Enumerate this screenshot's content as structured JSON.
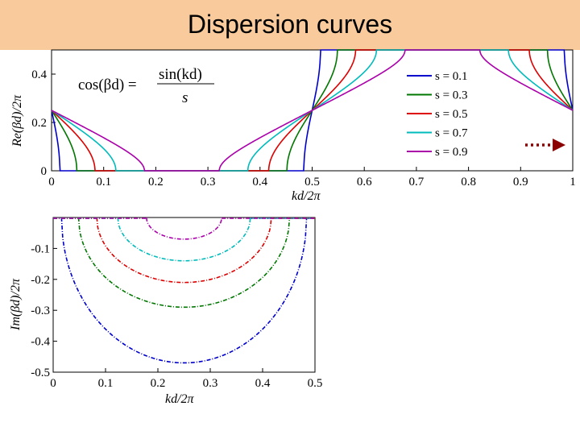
{
  "slide": {
    "title": "Dispersion curves"
  },
  "equation": {
    "lhs": "cos(βd) =",
    "num": "sin(kd)",
    "den": "s"
  },
  "colors": {
    "s0.1": "#0000cc",
    "s0.3": "#007700",
    "s0.5": "#dd0000",
    "s0.7": "#00bbbb",
    "s0.9": "#aa00aa",
    "arrow": "#8b0000",
    "title_bg": "#f9cb9c"
  },
  "arrow_icon": "dotted-right-arrow-icon",
  "chart_data": [
    {
      "type": "line",
      "title": "",
      "xlabel": "kd/2π",
      "ylabel": "Re(βd)/2π",
      "xlim": [
        0,
        1
      ],
      "ylim": [
        0,
        0.5
      ],
      "xticks": [
        "0",
        "0.1",
        "0.2",
        "0.3",
        "0.4",
        "0.5",
        "0.6",
        "0.7",
        "0.8",
        "0.9",
        "1"
      ],
      "yticks": [
        "0",
        "0.2",
        "0.4"
      ],
      "legend_position": "top-right",
      "series": [
        {
          "name": "s = 0.1",
          "s": 0.1
        },
        {
          "name": "s = 0.3",
          "s": 0.3
        },
        {
          "name": "s = 0.5",
          "s": 0.5
        },
        {
          "name": "s = 0.7",
          "s": 0.7
        },
        {
          "name": "s = 0.9",
          "s": 0.9
        }
      ]
    },
    {
      "type": "line",
      "title": "",
      "xlabel": "kd/2π",
      "ylabel": "Im(βd)/2π",
      "xlim": [
        0,
        0.5
      ],
      "ylim": [
        -0.5,
        0
      ],
      "xticks": [
        "0",
        "0.1",
        "0.2",
        "0.3",
        "0.4",
        "0.5"
      ],
      "yticks": [
        "-0.1",
        "-0.2",
        "-0.3",
        "-0.4",
        "-0.5"
      ],
      "series": [
        {
          "s": 0.1,
          "min": -0.47
        },
        {
          "s": 0.3,
          "min": -0.29
        },
        {
          "s": 0.5,
          "min": -0.21
        },
        {
          "s": 0.7,
          "min": -0.14
        },
        {
          "s": 0.9,
          "min": -0.07
        }
      ]
    }
  ]
}
